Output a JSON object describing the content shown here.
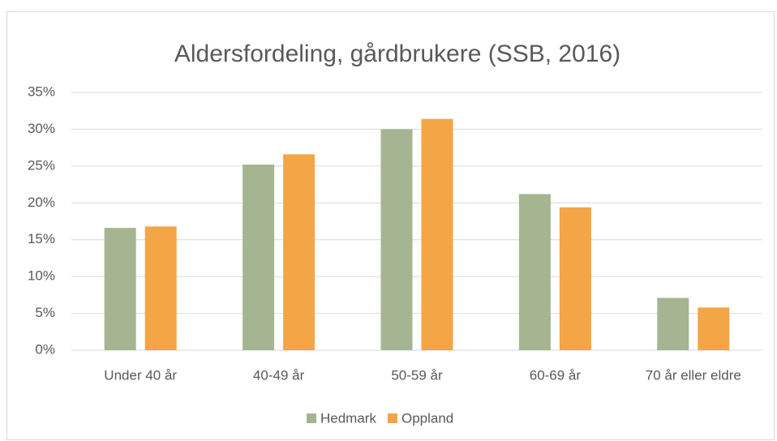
{
  "chart_data": {
    "type": "bar",
    "title": "Aldersfordeling, gårdbrukere (SSB, 2016)",
    "categories": [
      "Under 40 år",
      "40-49 år",
      "50-59 år",
      "60-69 år",
      "70 år eller eldre"
    ],
    "series": [
      {
        "name": "Hedmark",
        "color": "#a5b592",
        "values": [
          16.6,
          25.2,
          30.0,
          21.2,
          7.1
        ]
      },
      {
        "name": "Oppland",
        "color": "#f4a546",
        "values": [
          16.8,
          26.6,
          31.4,
          19.4,
          5.8
        ]
      }
    ],
    "ylim": [
      0,
      35
    ],
    "yticks": [
      {
        "value": 0,
        "label": "0%"
      },
      {
        "value": 5,
        "label": "5%"
      },
      {
        "value": 10,
        "label": "10%"
      },
      {
        "value": 15,
        "label": "15%"
      },
      {
        "value": 20,
        "label": "20%"
      },
      {
        "value": 25,
        "label": "25%"
      },
      {
        "value": 30,
        "label": "30%"
      },
      {
        "value": 35,
        "label": "35%"
      }
    ],
    "grid": true,
    "legend": "bottom"
  }
}
